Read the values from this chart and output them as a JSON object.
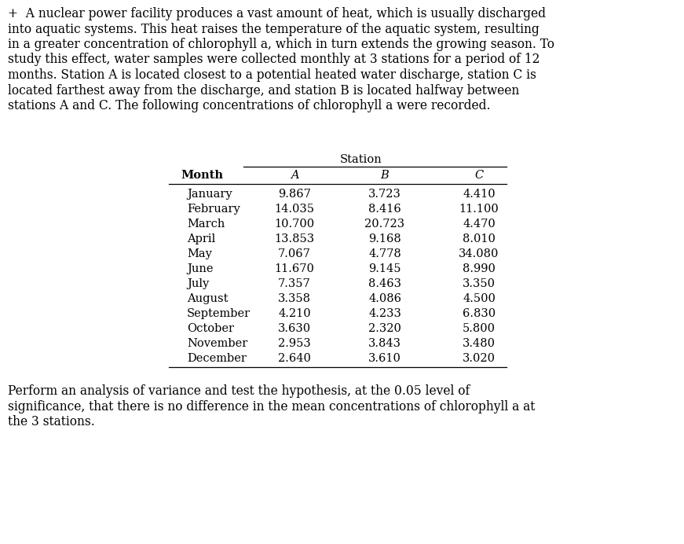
{
  "intro_text": "+  A nuclear power facility produces a vast amount of heat, which is usually discharged\ninto aquatic systems. This heat raises the temperature of the aquatic system, resulting\nin a greater concentration of chlorophyll a, which in turn extends the growing season. To\nstudy this effect, water samples were collected monthly at 3 stations for a period of 12\nmonths. Station A is located closest to a potential heated water discharge, station C is\nlocated farthest away from the discharge, and station B is located halfway between\nstations A and C. The following concentrations of chlorophyll a were recorded.",
  "footer_text": "Perform an analysis of variance and test the hypothesis, at the 0.05 level of\nsignificance, that there is no difference in the mean concentrations of chlorophyll a at\nthe 3 stations.",
  "col_header_label": "Station",
  "months": [
    "January",
    "February",
    "March",
    "April",
    "May",
    "June",
    "July",
    "August",
    "September",
    "October",
    "November",
    "December"
  ],
  "station_A": [
    9.867,
    14.035,
    10.7,
    13.853,
    7.067,
    11.67,
    7.357,
    3.358,
    4.21,
    3.63,
    2.953,
    2.64
  ],
  "station_B": [
    3.723,
    8.416,
    20.723,
    9.168,
    4.778,
    9.145,
    8.463,
    4.086,
    4.233,
    2.32,
    3.843,
    3.61
  ],
  "station_C": [
    4.41,
    11.1,
    4.47,
    8.01,
    34.08,
    8.99,
    3.35,
    4.5,
    6.83,
    5.8,
    3.48,
    3.02
  ],
  "bg_color": "#ffffff",
  "text_color": "#000000",
  "body_fontsize": 11.2,
  "table_fontsize": 10.5,
  "figsize": [
    8.71,
    6.92
  ],
  "dpi": 100
}
